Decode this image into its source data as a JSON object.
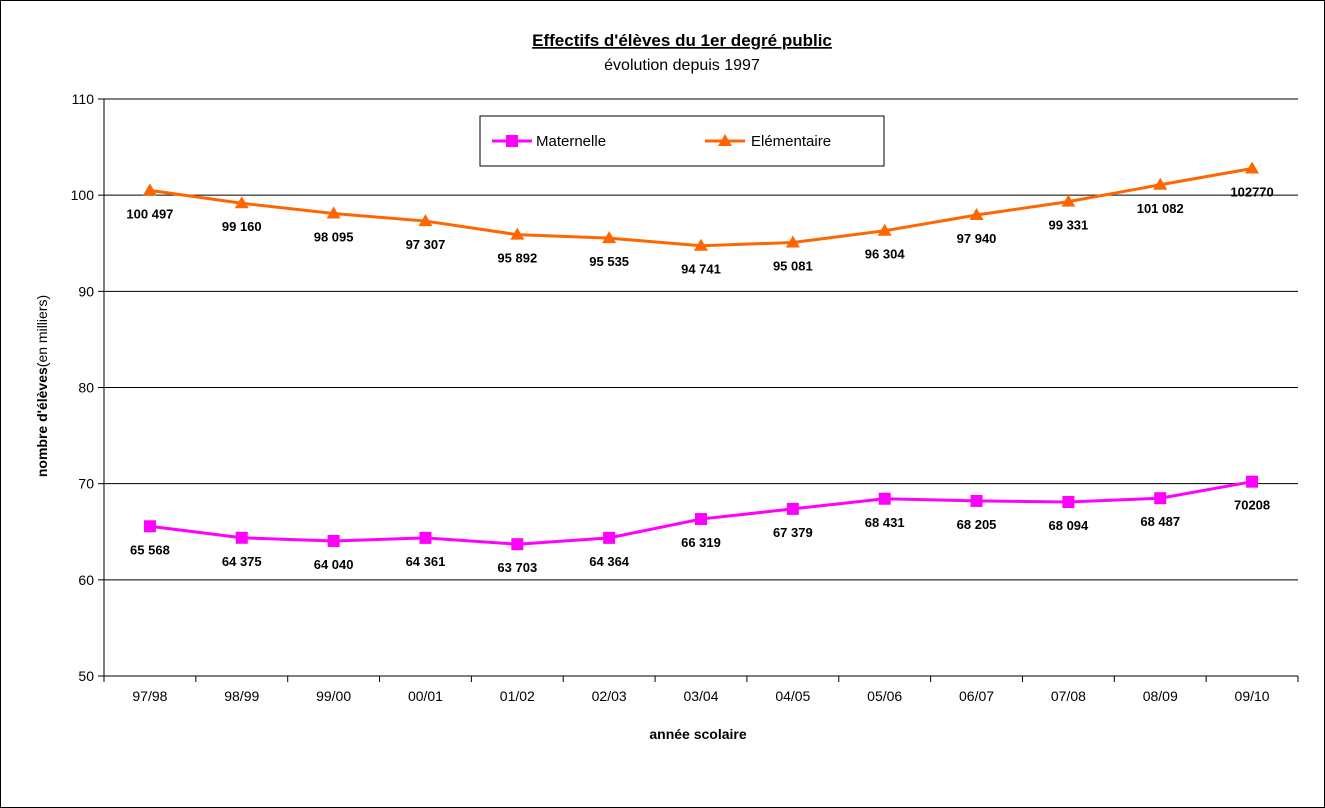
{
  "chart_data": {
    "type": "line",
    "title": "Effectifs d'élèves du 1er degré public",
    "subtitle": "évolution depuis 1997",
    "xlabel": "année scolaire",
    "ylabel_bold": "nombre d'élèves",
    "ylabel_normal": "(en milliers)",
    "ylim": [
      50,
      110
    ],
    "yticks": [
      50,
      60,
      70,
      80,
      90,
      100,
      110
    ],
    "grid": true,
    "legend_position": "top-center",
    "categories": [
      "97/98",
      "98/99",
      "99/00",
      "00/01",
      "01/02",
      "02/03",
      "03/04",
      "04/05",
      "05/06",
      "06/07",
      "07/08",
      "08/09",
      "09/10"
    ],
    "series": [
      {
        "name": "Maternelle",
        "color": "#ff00ff",
        "marker": "square",
        "values": [
          65.568,
          64.375,
          64.04,
          64.361,
          63.703,
          64.364,
          66.319,
          67.379,
          68.431,
          68.205,
          68.094,
          68.487,
          70.208
        ],
        "labels": [
          "65 568",
          "64 375",
          "64 040",
          "64 361",
          "63 703",
          "64 364",
          "66 319",
          "67 379",
          "68 431",
          "68 205",
          "68 094",
          "68 487",
          "70208"
        ]
      },
      {
        "name": "Elémentaire",
        "color": "#ff6600",
        "marker": "triangle",
        "values": [
          100.497,
          99.16,
          98.095,
          97.307,
          95.892,
          95.535,
          94.741,
          95.081,
          96.304,
          97.94,
          99.331,
          101.082,
          102.77
        ],
        "labels": [
          "100 497",
          "99 160",
          "98 095",
          "97 307",
          "95 892",
          "95 535",
          "94 741",
          "95 081",
          "96 304",
          "97 940",
          "99 331",
          "101 082",
          "102770"
        ]
      }
    ]
  }
}
